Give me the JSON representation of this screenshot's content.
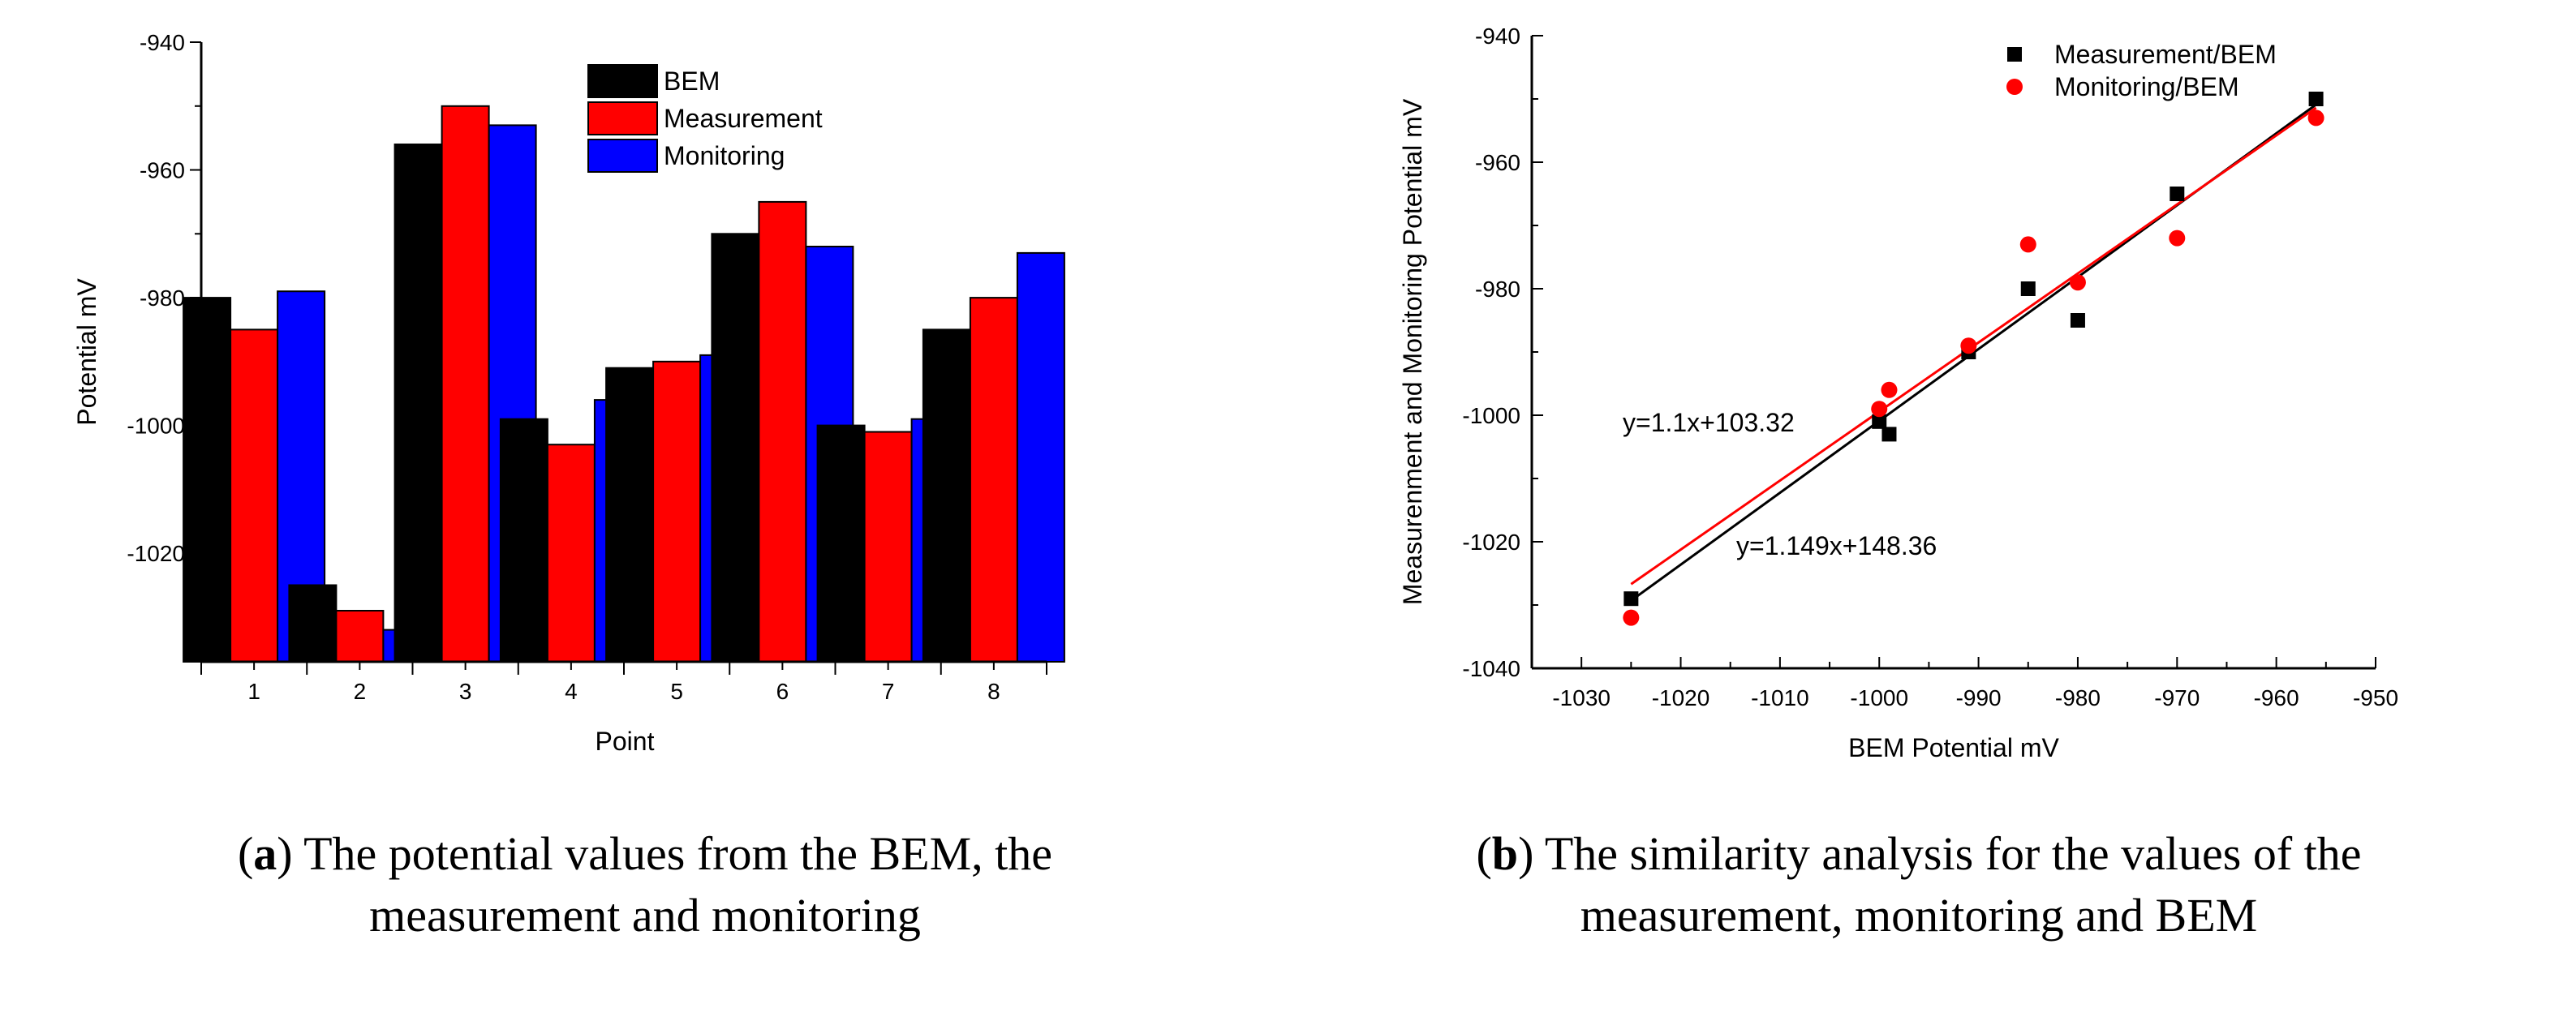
{
  "chart_data": [
    {
      "type": "bar",
      "categories": [
        "1",
        "2",
        "3",
        "4",
        "5",
        "6",
        "7",
        "8"
      ],
      "series": [
        {
          "name": "BEM",
          "color": "#000000",
          "values": [
            -980,
            -1025,
            -956,
            -999,
            -991,
            -970,
            -1000,
            -985
          ]
        },
        {
          "name": "Measurement",
          "color": "#ff0000",
          "values": [
            -985,
            -1029,
            -950,
            -1003,
            -990,
            -965,
            -1001,
            -980
          ]
        },
        {
          "name": "Monitoring",
          "color": "#0000ff",
          "values": [
            -979,
            -1032,
            -953,
            -996,
            -989,
            -972,
            -999,
            -973
          ]
        }
      ],
      "xlabel": "Point",
      "ylabel": "Potential mV",
      "ylim": [
        -1037,
        -940
      ],
      "yticks": [
        -940,
        -960,
        -980,
        -1000,
        -1020
      ],
      "legend": "top-right"
    },
    {
      "type": "scatter",
      "series": [
        {
          "name": "Measurement/BEM",
          "color": "#000000",
          "marker": "square",
          "x": [
            -1025,
            -1000,
            -999,
            -991,
            -985,
            -980,
            -970,
            -956
          ],
          "y": [
            -1029,
            -1001,
            -1003,
            -990,
            -980,
            -985,
            -965,
            -950
          ]
        },
        {
          "name": "Monitoring/BEM",
          "color": "#ff0000",
          "marker": "circle",
          "x": [
            -1025,
            -1000,
            -999,
            -991,
            -985,
            -980,
            -970,
            -956
          ],
          "y": [
            -1032,
            -999,
            -996,
            -989,
            -973,
            -979,
            -972,
            -953
          ]
        }
      ],
      "fit_lines": [
        {
          "series": "Measurement/BEM",
          "label": "y=1.149x+148.36",
          "color": "#000000",
          "x1": -1025,
          "y1": -1029.3,
          "x2": -956,
          "y2": -950.9
        },
        {
          "series": "Monitoring/BEM",
          "label": "y=1.1x+103.32",
          "color": "#ff0000",
          "x1": -1025,
          "y1": -1026.7,
          "x2": -956,
          "y2": -951.4
        }
      ],
      "xlabel": "BEM Potential mV",
      "ylabel": "Measurenment and Monitoring Potential mV",
      "xlim": [
        -1035,
        -950
      ],
      "ylim": [
        -1040,
        -940
      ],
      "xticks": [
        -1030,
        -1020,
        -1010,
        -1000,
        -990,
        -980,
        -970,
        -960,
        -950
      ],
      "yticks": [
        -940,
        -960,
        -980,
        -1000,
        -1020,
        -1040
      ],
      "legend": "top-right"
    }
  ],
  "captions": {
    "a_tag": "a",
    "a_line1": "The potential values from the BEM, the",
    "a_line2": "measurement and monitoring",
    "b_tag": "b",
    "b_line1": "The similarity analysis for the values of the",
    "b_line2": "measurement, monitoring and BEM"
  }
}
